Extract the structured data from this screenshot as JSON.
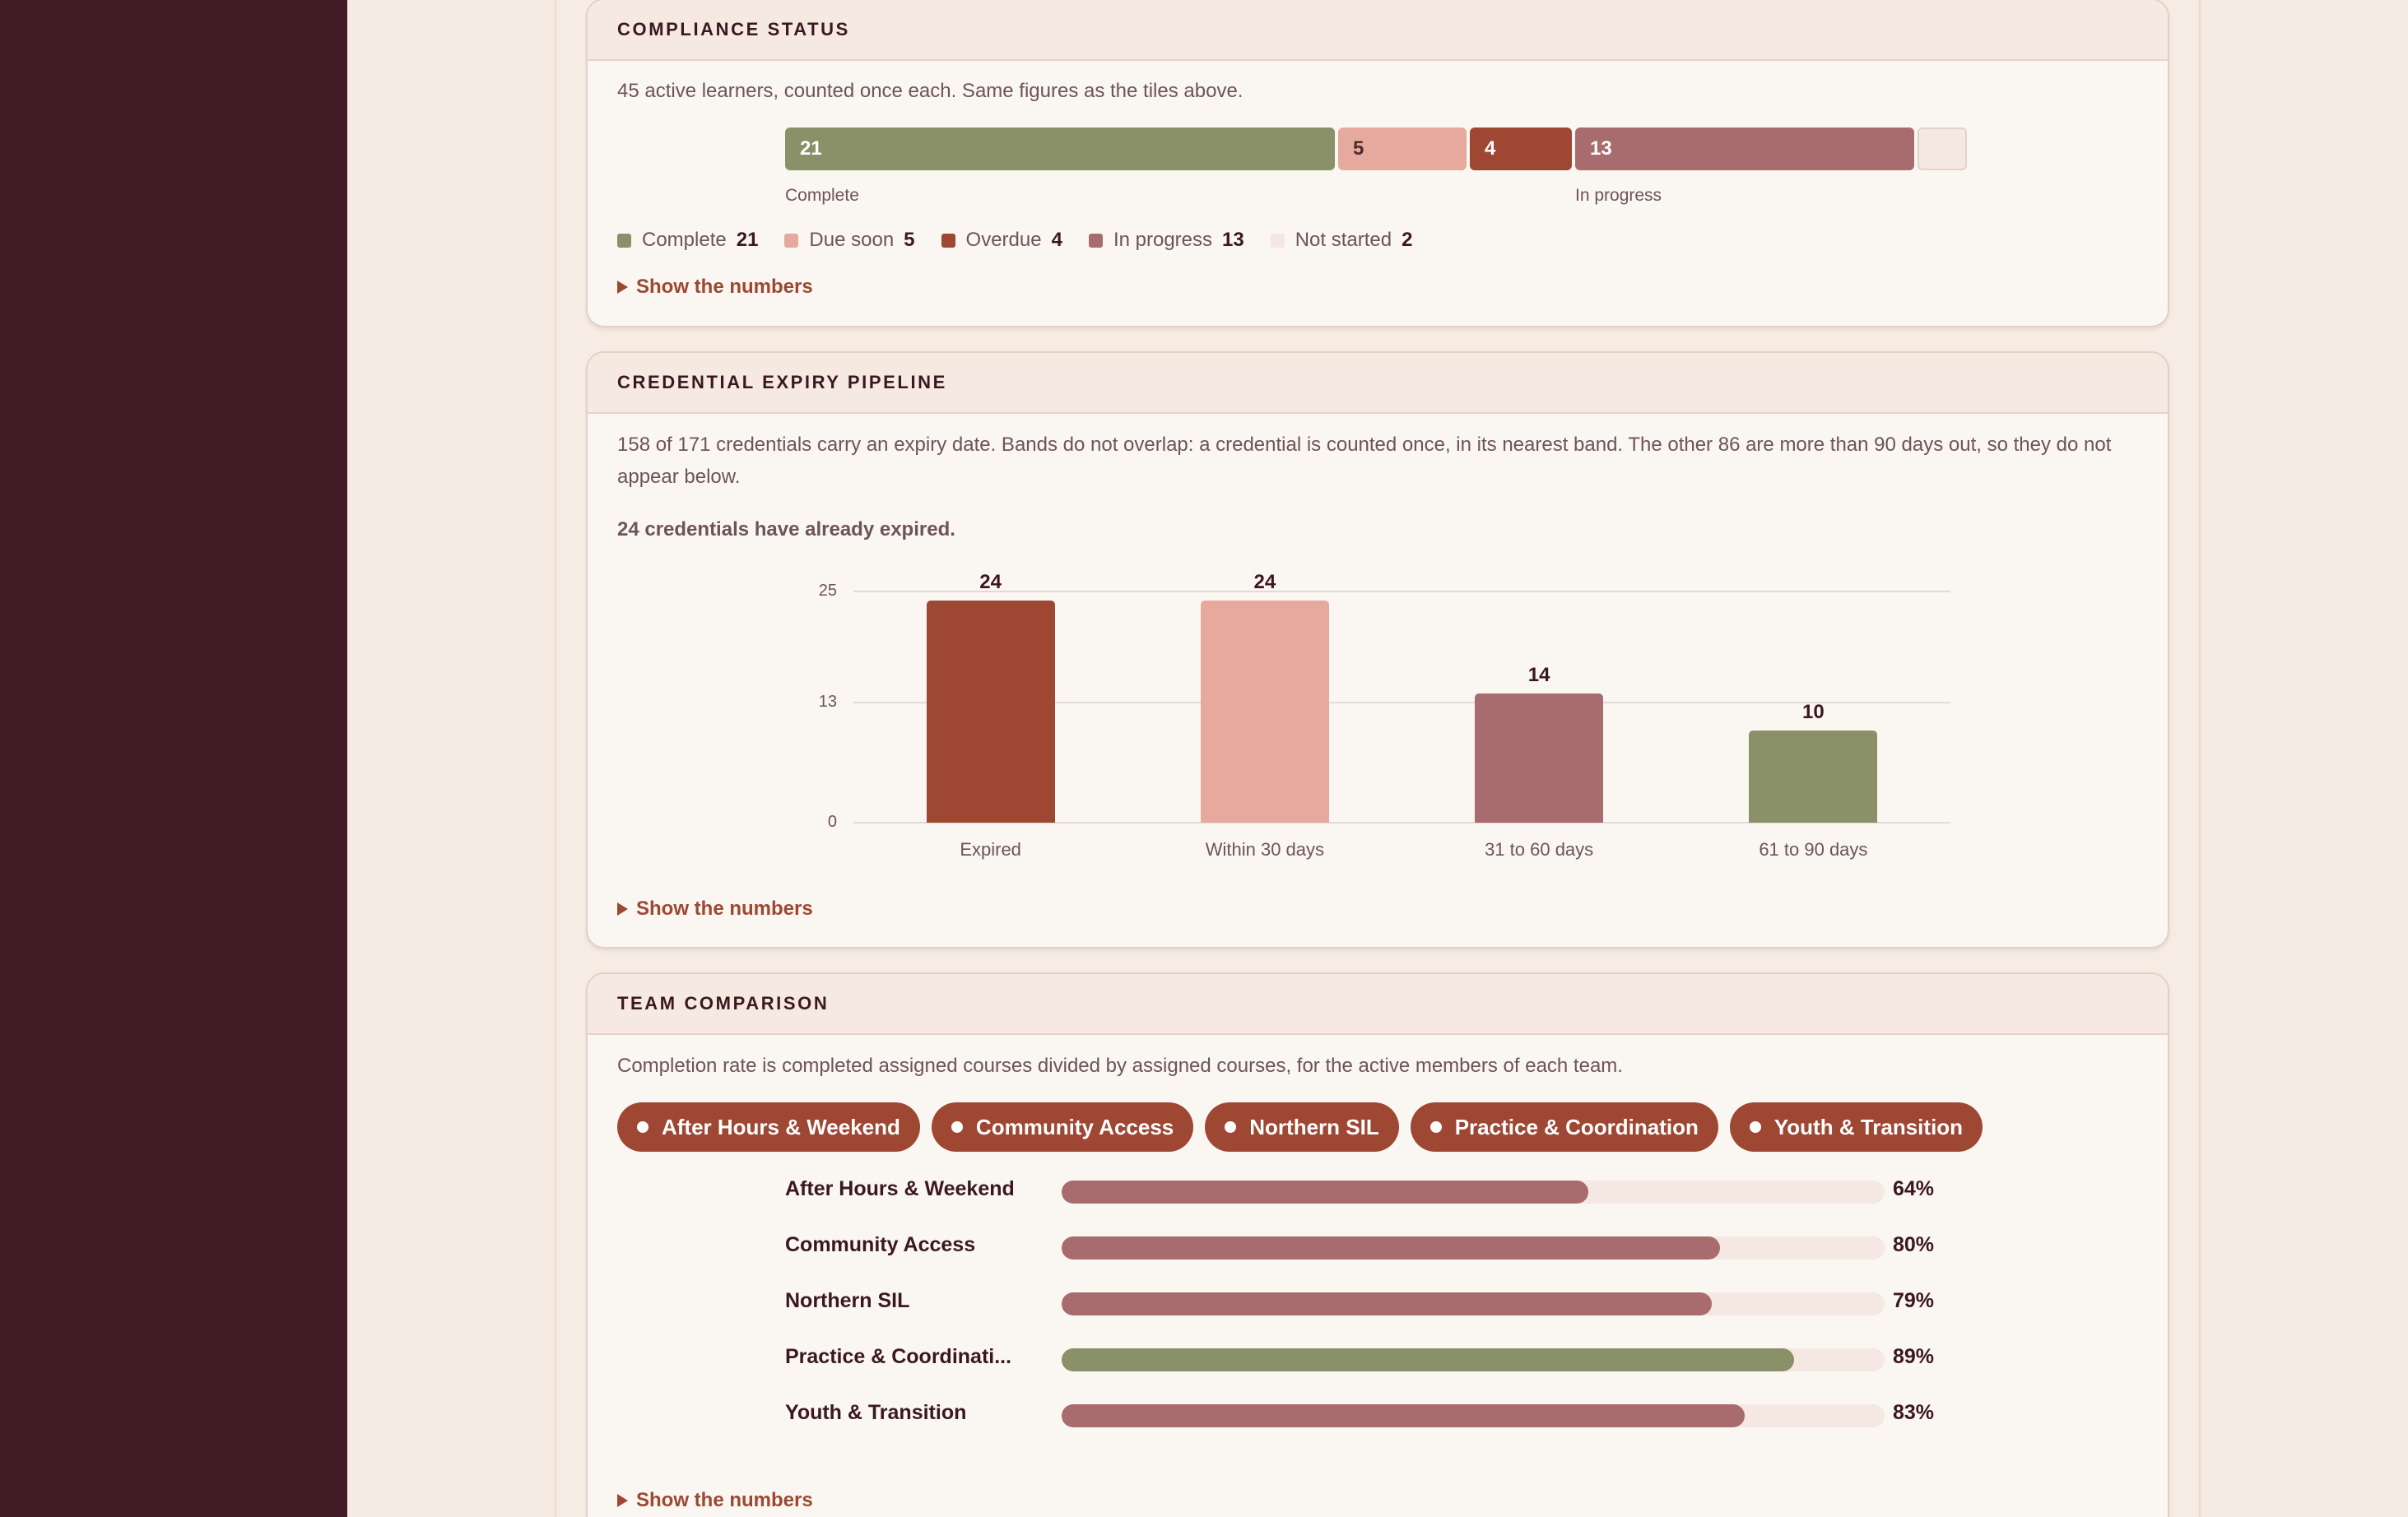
{
  "colors": {
    "sidebar": "#421d28",
    "complete": "#8a9068",
    "due_soon": "#e6a99d",
    "overdue": "#9e4834",
    "in_progress": "#a86b6e",
    "not_started": "#f5e7e1",
    "accent": "#9c4832"
  },
  "compliance": {
    "title": "COMPLIANCE STATUS",
    "description": "45 active learners, counted once each. Same figures as the tiles above.",
    "segments": [
      {
        "key": "complete",
        "label": "Complete",
        "count": 21,
        "color": "#8a9068"
      },
      {
        "key": "due_soon",
        "label": "Due soon",
        "count": 5,
        "color": "#e6a99d"
      },
      {
        "key": "overdue",
        "label": "Overdue",
        "count": 4,
        "color": "#9e4834"
      },
      {
        "key": "in_progress",
        "label": "In progress",
        "count": 13,
        "color": "#a86b6e"
      },
      {
        "key": "not_started",
        "label": "Not started",
        "count": 2,
        "color": "#f5e7e1"
      }
    ],
    "bar_labels": {
      "complete": "Complete",
      "in_progress": "In progress"
    },
    "show_numbers": "Show the numbers"
  },
  "pipeline": {
    "title": "CREDENTIAL EXPIRY PIPELINE",
    "description": "158 of 171 credentials carry an expiry date. Bands do not overlap: a credential is counted once, in its nearest band. The other 86 are more than 90 days out, so they do not appear below.",
    "expired_note": "24 credentials have already expired.",
    "show_numbers": "Show the numbers"
  },
  "chart_data": {
    "type": "bar",
    "categories": [
      "Expired",
      "Within 30 days",
      "31 to 60 days",
      "61 to 90 days"
    ],
    "values": [
      24,
      24,
      14,
      10
    ],
    "colors": [
      "#9e4834",
      "#e6a99d",
      "#a86b6e",
      "#8a9068"
    ],
    "yticks": [
      0,
      13,
      25
    ],
    "ylim": [
      0,
      25
    ],
    "grid": true
  },
  "team": {
    "title": "TEAM COMPARISON",
    "description": "Completion rate is completed assigned courses divided by assigned courses, for the active members of each team.",
    "chips": [
      "After Hours & Weekend",
      "Community Access",
      "Northern SIL",
      "Practice & Coordination",
      "Youth & Transition"
    ],
    "rows": [
      {
        "name": "After Hours & Weekend",
        "value": 0.64,
        "pct": "64%",
        "color": "#a86b6e"
      },
      {
        "name": "Community Access",
        "value": 0.8,
        "pct": "80%",
        "color": "#a86b6e"
      },
      {
        "name": "Northern SIL",
        "value": 0.79,
        "pct": "79%",
        "color": "#a86b6e"
      },
      {
        "name": "Practice & Coordinati...",
        "value": 0.89,
        "pct": "89%",
        "color": "#8a9068"
      },
      {
        "name": "Youth & Transition",
        "value": 0.83,
        "pct": "83%",
        "color": "#a86b6e"
      }
    ],
    "show_numbers": "Show the numbers"
  }
}
